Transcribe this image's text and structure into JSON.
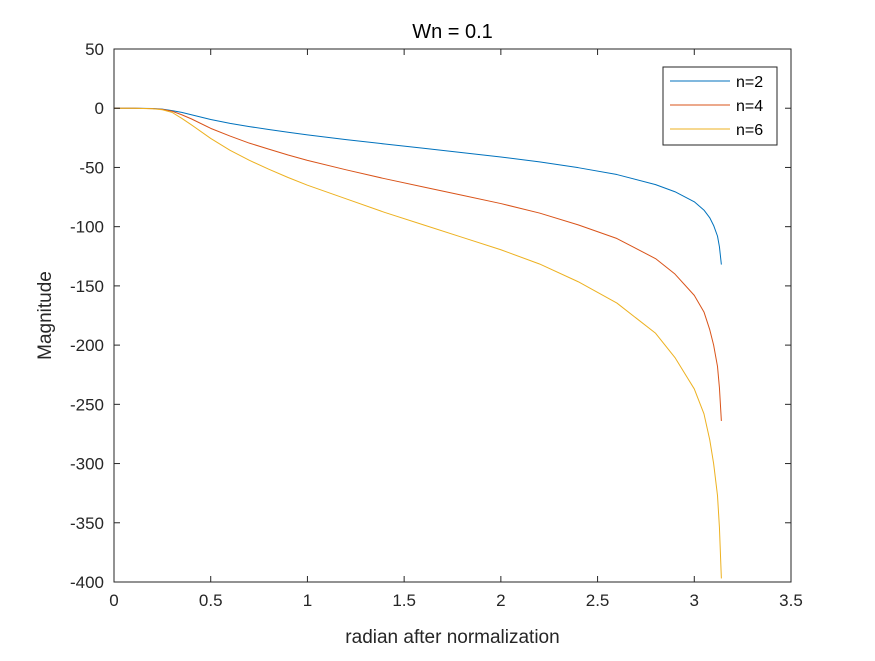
{
  "chart_data": {
    "type": "line",
    "title": "Wn = 0.1",
    "xlabel": "radian after normalization",
    "ylabel": "Magnitude",
    "xlim": [
      0,
      3.5
    ],
    "ylim": [
      -400,
      50
    ],
    "xticks": [
      0,
      0.5,
      1,
      1.5,
      2,
      2.5,
      3,
      3.5
    ],
    "xtick_labels": [
      "0",
      "0.5",
      "1",
      "1.5",
      "2",
      "2.5",
      "3",
      "3.5"
    ],
    "yticks": [
      50,
      0,
      -50,
      -100,
      -150,
      -200,
      -250,
      -300,
      -350,
      -400
    ],
    "ytick_labels": [
      "50",
      "0",
      "-50",
      "-100",
      "-150",
      "-200",
      "-250",
      "-300",
      "-350",
      "-400"
    ],
    "grid": false,
    "legend_position": "top-right",
    "series": [
      {
        "name": "n=2",
        "color": "#0072BD",
        "x": [
          0,
          0.1,
          0.2,
          0.25,
          0.3,
          0.35,
          0.4,
          0.5,
          0.6,
          0.7,
          0.8,
          0.9,
          1.0,
          1.2,
          1.4,
          1.6,
          1.8,
          2.0,
          2.2,
          2.4,
          2.6,
          2.8,
          2.9,
          3.0,
          3.05,
          3.08,
          3.1,
          3.12,
          3.13,
          3.14
        ],
        "y": [
          0,
          0,
          -0.2,
          -0.8,
          -2,
          -3.5,
          -5.5,
          -9.5,
          -12.8,
          -15.5,
          -18,
          -20.3,
          -22.5,
          -26.5,
          -30.2,
          -33.8,
          -37.5,
          -41.2,
          -45.3,
          -50.2,
          -56,
          -64.5,
          -70.5,
          -79,
          -86,
          -92.5,
          -99,
          -108,
          -117,
          -132
        ]
      },
      {
        "name": "n=4",
        "color": "#D95319",
        "x": [
          0,
          0.1,
          0.2,
          0.25,
          0.3,
          0.35,
          0.4,
          0.5,
          0.6,
          0.7,
          0.8,
          0.9,
          1.0,
          1.2,
          1.4,
          1.6,
          1.8,
          2.0,
          2.2,
          2.4,
          2.6,
          2.8,
          2.9,
          3.0,
          3.05,
          3.08,
          3.1,
          3.12,
          3.13,
          3.14
        ],
        "y": [
          0,
          0,
          -0.3,
          -1,
          -2.5,
          -5.5,
          -9,
          -17,
          -23.5,
          -29.5,
          -34.5,
          -39.5,
          -44,
          -52,
          -59.5,
          -66.5,
          -73.5,
          -80.5,
          -88.5,
          -98.5,
          -110,
          -127,
          -140,
          -158,
          -172,
          -187,
          -200,
          -218,
          -236,
          -264
        ]
      },
      {
        "name": "n=6",
        "color": "#EDB120",
        "x": [
          0,
          0.1,
          0.2,
          0.25,
          0.3,
          0.35,
          0.4,
          0.5,
          0.6,
          0.7,
          0.8,
          0.9,
          1.0,
          1.2,
          1.4,
          1.6,
          1.8,
          2.0,
          2.2,
          2.4,
          2.6,
          2.8,
          2.9,
          3.0,
          3.05,
          3.08,
          3.1,
          3.12,
          3.13,
          3.14
        ],
        "y": [
          0,
          0,
          -0.4,
          -1.3,
          -3.5,
          -8.5,
          -14,
          -25.5,
          -35.5,
          -44,
          -51.5,
          -58.5,
          -65,
          -76.5,
          -88,
          -98.5,
          -109,
          -119.5,
          -131.5,
          -146.5,
          -164.5,
          -190,
          -210.5,
          -237,
          -258,
          -280,
          -300,
          -327,
          -354,
          -397
        ]
      }
    ]
  }
}
